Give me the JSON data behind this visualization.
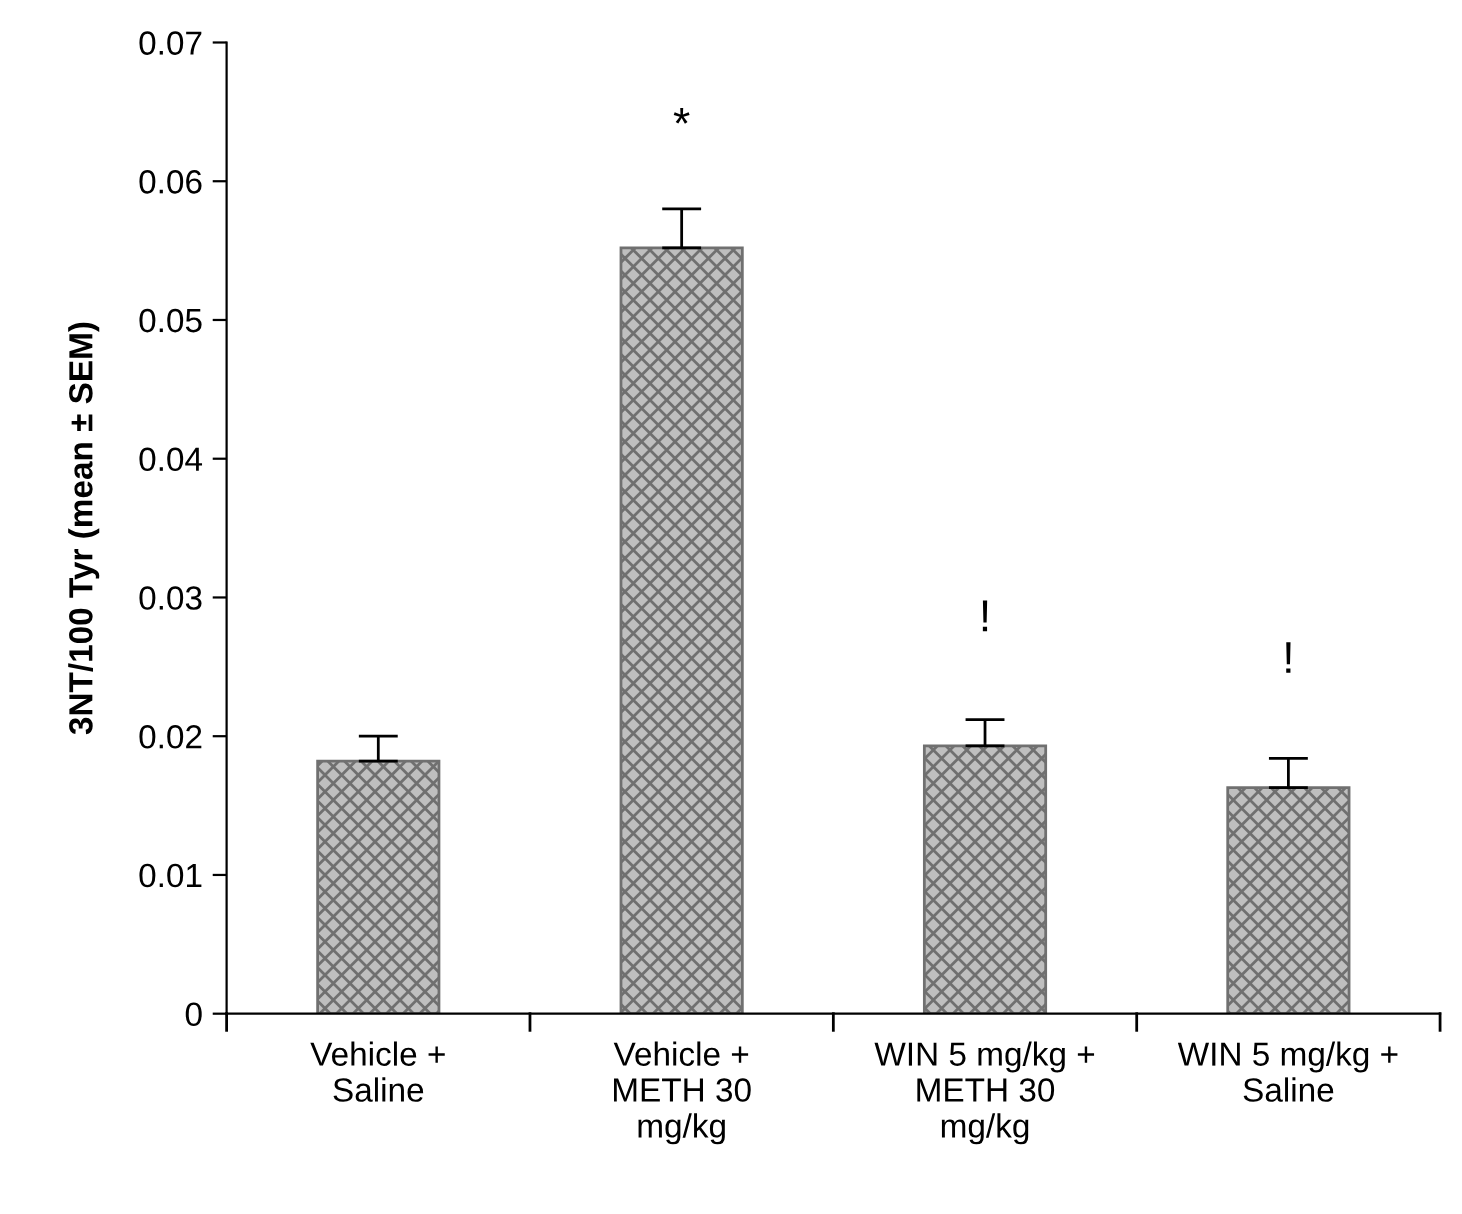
{
  "chart_data": {
    "type": "bar",
    "ylabel": "3NT/100 Tyr (mean ± SEM)",
    "categories": [
      "Vehicle +\nSaline",
      "Vehicle +\nMETH 30\nmg/kg",
      "WIN 5 mg/kg +\nMETH 30\nmg/kg",
      "WIN 5 mg/kg +\nSaline"
    ],
    "values": [
      0.0182,
      0.0552,
      0.0193,
      0.0163
    ],
    "errors": [
      0.0018,
      0.0028,
      0.0019,
      0.0021
    ],
    "color": "#707070",
    "ylim": [
      0,
      0.07
    ],
    "yticks": [
      {
        "value": 0,
        "label": "0"
      },
      0.01,
      0.02,
      0.03,
      0.04,
      0.05,
      0.06,
      0.07
    ],
    "grid": false,
    "annotations": [
      "*",
      "!",
      "!"
    ]
  }
}
